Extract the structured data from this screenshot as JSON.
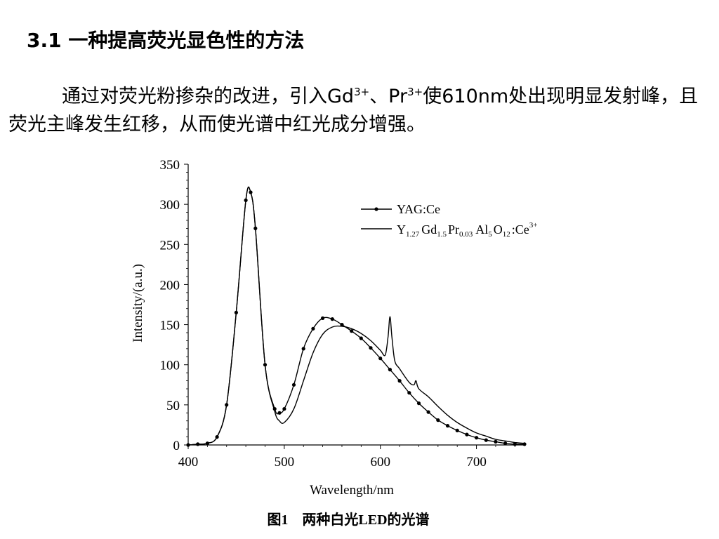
{
  "slide": {
    "heading": "3.1 一种提高荧光显色性的方法",
    "paragraph": {
      "p1": "通过对荧光粉掺杂的改进，引入Gd",
      "sup1": "3+",
      "p2": "、Pr",
      "sup2": "3+",
      "p3": "使610nm处出现明显发射峰，且荧光主峰发生红移，从而使光谱中红光成分增强。"
    }
  },
  "chart_data": {
    "type": "line",
    "title": "",
    "caption": "图1　两种白光LED的光谱",
    "xlabel": "Wavelength/nm",
    "ylabel": "Intensity/(a.u.)",
    "xlim": [
      400,
      750
    ],
    "ylim": [
      0,
      350
    ],
    "xticks": [
      400,
      500,
      600,
      700
    ],
    "yticks": [
      0,
      50,
      100,
      150,
      200,
      250,
      300,
      350
    ],
    "grid": false,
    "legend_position": "top-right",
    "series": [
      {
        "name": "YAG:Ce",
        "marker": "circle",
        "x": [
          400,
          410,
          420,
          430,
          440,
          450,
          460,
          465,
          470,
          480,
          490,
          495,
          500,
          510,
          520,
          530,
          540,
          550,
          560,
          570,
          580,
          590,
          600,
          610,
          620,
          630,
          640,
          650,
          660,
          670,
          680,
          690,
          700,
          710,
          720,
          730,
          740,
          750
        ],
        "y": [
          0,
          1,
          2,
          10,
          50,
          165,
          305,
          315,
          270,
          100,
          45,
          40,
          45,
          75,
          120,
          145,
          158,
          157,
          150,
          142,
          133,
          121,
          108,
          94,
          80,
          65,
          52,
          41,
          31,
          24,
          18,
          13,
          9,
          6,
          4,
          2,
          1,
          1
        ]
      },
      {
        "name": "Y1.27Gd1.5Pr0.03Al5O12:Ce3+",
        "marker": "none",
        "x": [
          400,
          410,
          420,
          430,
          440,
          450,
          460,
          465,
          470,
          480,
          490,
          495,
          500,
          510,
          520,
          530,
          540,
          550,
          560,
          570,
          580,
          590,
          600,
          605,
          608,
          610,
          612,
          615,
          620,
          630,
          635,
          637,
          640,
          650,
          660,
          670,
          680,
          690,
          700,
          710,
          720,
          730,
          740,
          750
        ],
        "y": [
          0,
          1,
          2,
          10,
          50,
          165,
          305,
          315,
          270,
          100,
          42,
          30,
          28,
          45,
          80,
          115,
          138,
          147,
          148,
          145,
          139,
          130,
          118,
          112,
          135,
          160,
          135,
          105,
          95,
          78,
          75,
          80,
          70,
          60,
          48,
          37,
          28,
          21,
          15,
          11,
          7,
          5,
          3,
          2
        ]
      }
    ]
  },
  "legend": {
    "item1": {
      "label": "YAG:Ce"
    },
    "item2": {
      "y": "Y",
      "ys": "1.27",
      "gd": "Gd",
      "gds": "1.5",
      "pr": "Pr",
      "prs": "0.03",
      "al": "Al",
      "als": "5",
      "o": "O",
      "os": "12",
      "ce": ":Ce",
      "ces": "3+"
    }
  }
}
